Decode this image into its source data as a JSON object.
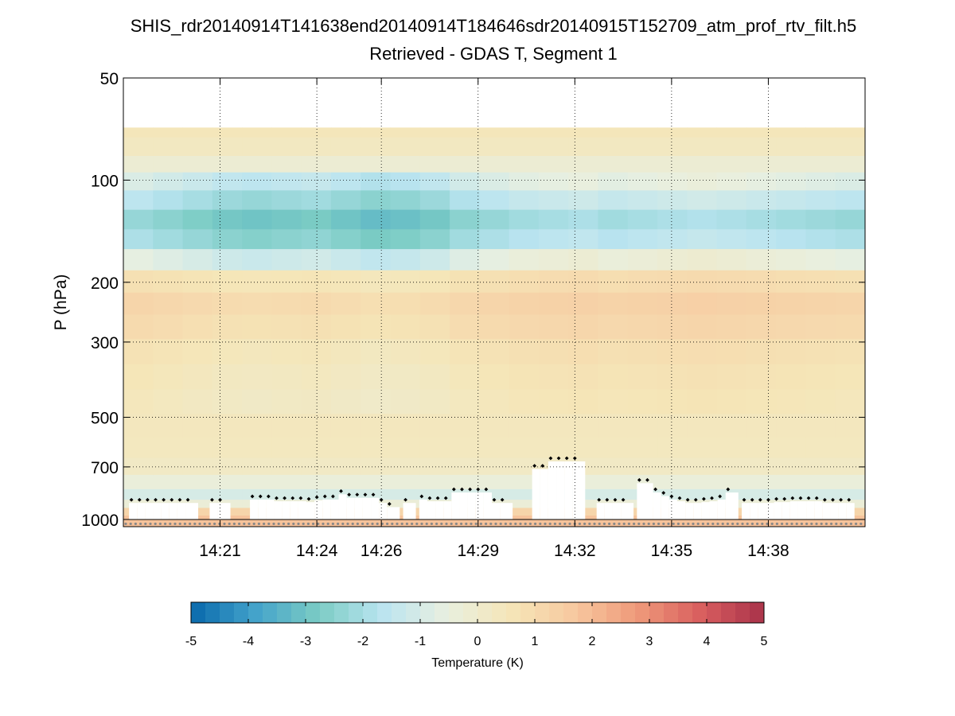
{
  "chart_data": {
    "type": "heatmap",
    "title": "SHIS_rdr20140914T141638end20140914T184646sdr20140915T152709_atm_prof_rtv_filt.h5",
    "subtitle": "Retrieved - GDAS T, Segment 1",
    "ylabel": "P (hPa)",
    "xlabel": "",
    "y_scale": "log",
    "y_reversed": true,
    "ylim": [
      50,
      1050
    ],
    "x_range_minutes": [
      "14:18",
      "14:41"
    ],
    "y_ticks": [
      {
        "value": 50,
        "label": "50"
      },
      {
        "value": 100,
        "label": "100"
      },
      {
        "value": 200,
        "label": "200"
      },
      {
        "value": 300,
        "label": "300"
      },
      {
        "value": 500,
        "label": "500"
      },
      {
        "value": 700,
        "label": "700"
      },
      {
        "value": 1000,
        "label": "1000"
      }
    ],
    "x_ticks": [
      "14:21",
      "14:24",
      "14:26",
      "14:29",
      "14:32",
      "14:35",
      "14:38"
    ],
    "grid": "dotted",
    "data_top_pressure": 70,
    "pressure_levels": [
      70,
      80,
      90,
      100,
      115,
      130,
      150,
      170,
      200,
      230,
      270,
      320,
      380,
      450,
      530,
      620,
      700,
      780,
      850,
      900,
      950,
      1000,
      1050
    ],
    "profile": [
      0.5,
      0.3,
      -0.2,
      -0.9,
      -1.6,
      -2.3,
      -1.9,
      -0.6,
      0.8,
      1.2,
      1.0,
      0.7,
      0.55,
      0.45,
      0.4,
      0.35,
      0.2,
      -0.4,
      -1.0,
      -0.3,
      1.2,
      1.8,
      1.9
    ],
    "column_modulation": [
      0.0,
      0.1,
      0.2,
      0.3,
      0.35,
      0.3,
      0.25,
      0.35,
      0.45,
      0.4,
      0.3,
      0.1,
      0.0,
      -0.1,
      -0.15,
      -0.2,
      -0.1,
      -0.15,
      -0.2,
      -0.25,
      -0.2,
      -0.15,
      -0.1,
      -0.05,
      0.0
    ],
    "surface_pressure": 1030,
    "cloud_top_markers": [
      {
        "t": "14:18:15",
        "p": 875
      },
      {
        "t": "14:18:30",
        "p": 875
      },
      {
        "t": "14:18:45",
        "p": 875
      },
      {
        "t": "14:19:00",
        "p": 875
      },
      {
        "t": "14:19:15",
        "p": 875
      },
      {
        "t": "14:19:30",
        "p": 875
      },
      {
        "t": "14:19:45",
        "p": 875
      },
      {
        "t": "14:20:00",
        "p": 875
      },
      {
        "t": "14:20:45",
        "p": 875
      },
      {
        "t": "14:21:00",
        "p": 875
      },
      {
        "t": "14:22:00",
        "p": 855
      },
      {
        "t": "14:22:15",
        "p": 855
      },
      {
        "t": "14:22:30",
        "p": 855
      },
      {
        "t": "14:22:45",
        "p": 865
      },
      {
        "t": "14:23:00",
        "p": 865
      },
      {
        "t": "14:23:15",
        "p": 865
      },
      {
        "t": "14:23:30",
        "p": 865
      },
      {
        "t": "14:23:45",
        "p": 870
      },
      {
        "t": "14:24:00",
        "p": 860
      },
      {
        "t": "14:24:15",
        "p": 855
      },
      {
        "t": "14:24:30",
        "p": 855
      },
      {
        "t": "14:24:45",
        "p": 825
      },
      {
        "t": "14:25:00",
        "p": 845
      },
      {
        "t": "14:25:15",
        "p": 845
      },
      {
        "t": "14:25:30",
        "p": 845
      },
      {
        "t": "14:25:45",
        "p": 845
      },
      {
        "t": "14:26:00",
        "p": 875
      },
      {
        "t": "14:26:15",
        "p": 900
      },
      {
        "t": "14:26:45",
        "p": 875
      },
      {
        "t": "14:27:15",
        "p": 855
      },
      {
        "t": "14:27:30",
        "p": 865
      },
      {
        "t": "14:27:45",
        "p": 865
      },
      {
        "t": "14:28:00",
        "p": 865
      },
      {
        "t": "14:28:15",
        "p": 815
      },
      {
        "t": "14:28:30",
        "p": 815
      },
      {
        "t": "14:28:45",
        "p": 815
      },
      {
        "t": "14:29:00",
        "p": 815
      },
      {
        "t": "14:29:15",
        "p": 815
      },
      {
        "t": "14:29:30",
        "p": 875
      },
      {
        "t": "14:29:45",
        "p": 875
      },
      {
        "t": "14:30:45",
        "p": 695
      },
      {
        "t": "14:31:00",
        "p": 695
      },
      {
        "t": "14:31:15",
        "p": 660
      },
      {
        "t": "14:31:30",
        "p": 660
      },
      {
        "t": "14:31:45",
        "p": 660
      },
      {
        "t": "14:32:00",
        "p": 660
      },
      {
        "t": "14:32:45",
        "p": 875
      },
      {
        "t": "14:33:00",
        "p": 875
      },
      {
        "t": "14:33:15",
        "p": 875
      },
      {
        "t": "14:33:30",
        "p": 875
      },
      {
        "t": "14:34:00",
        "p": 765
      },
      {
        "t": "14:34:15",
        "p": 765
      },
      {
        "t": "14:34:30",
        "p": 815
      },
      {
        "t": "14:34:45",
        "p": 835
      },
      {
        "t": "14:35:00",
        "p": 855
      },
      {
        "t": "14:35:15",
        "p": 865
      },
      {
        "t": "14:35:30",
        "p": 875
      },
      {
        "t": "14:35:45",
        "p": 875
      },
      {
        "t": "14:36:00",
        "p": 870
      },
      {
        "t": "14:36:15",
        "p": 865
      },
      {
        "t": "14:36:30",
        "p": 855
      },
      {
        "t": "14:36:45",
        "p": 815
      },
      {
        "t": "14:37:15",
        "p": 875
      },
      {
        "t": "14:37:30",
        "p": 875
      },
      {
        "t": "14:37:45",
        "p": 875
      },
      {
        "t": "14:38:00",
        "p": 875
      },
      {
        "t": "14:38:15",
        "p": 870
      },
      {
        "t": "14:38:30",
        "p": 870
      },
      {
        "t": "14:38:45",
        "p": 865
      },
      {
        "t": "14:39:00",
        "p": 865
      },
      {
        "t": "14:39:15",
        "p": 865
      },
      {
        "t": "14:39:30",
        "p": 865
      },
      {
        "t": "14:39:45",
        "p": 875
      },
      {
        "t": "14:40:00",
        "p": 875
      },
      {
        "t": "14:40:15",
        "p": 875
      },
      {
        "t": "14:40:30",
        "p": 875
      }
    ],
    "colorbar": {
      "label": "Temperature (K)",
      "min": -5,
      "max": 5,
      "ticks": [
        "-5",
        "-4",
        "-3",
        "-2",
        "-1",
        "0",
        "1",
        "2",
        "3",
        "4",
        "5"
      ],
      "colors": [
        "#0868ac",
        "#43a2ca",
        "#7bccc4",
        "#bae4f0",
        "#e8efe0",
        "#f5e6b8",
        "#f7c9a0",
        "#ef9a7a",
        "#d95f5f",
        "#a8324a"
      ]
    }
  }
}
